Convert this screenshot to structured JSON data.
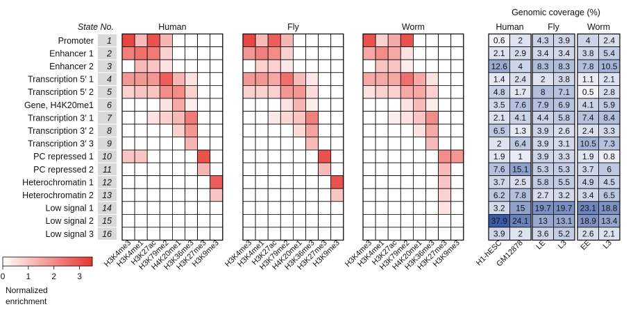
{
  "chart_data": {
    "type": "heatmap",
    "state_header": "State No.",
    "states": [
      {
        "no": "1",
        "name": "Promoter"
      },
      {
        "no": "2",
        "name": "Enhancer 1"
      },
      {
        "no": "3",
        "name": "Enhancer 2"
      },
      {
        "no": "4",
        "name": "Transcription 5′ 1"
      },
      {
        "no": "5",
        "name": "Transcription 5′ 2"
      },
      {
        "no": "6",
        "name": "Gene, H4K20me1"
      },
      {
        "no": "7",
        "name": "Transcription 3′ 1"
      },
      {
        "no": "8",
        "name": "Transcription 3′ 2"
      },
      {
        "no": "9",
        "name": "Transcription 3′ 3"
      },
      {
        "no": "10",
        "name": "PC repressed 1"
      },
      {
        "no": "11",
        "name": "PC repressed 2"
      },
      {
        "no": "12",
        "name": "Heterochromatin 1"
      },
      {
        "no": "13",
        "name": "Heterochromatin 2"
      },
      {
        "no": "14",
        "name": "Low signal 1"
      },
      {
        "no": "15",
        "name": "Low signal 2"
      },
      {
        "no": "16",
        "name": "Low signal 3"
      }
    ],
    "marks": [
      "H3K4me3",
      "H3K4me1",
      "H3K27ac",
      "H3K79me2",
      "H4K20me1",
      "H3K36me3",
      "H3K27me3",
      "H3K9me3"
    ],
    "species": [
      {
        "name": "Human",
        "enrichment": [
          [
            3.2,
            1.2,
            3.0,
            1.3,
            0.0,
            0.0,
            0.0,
            0.0
          ],
          [
            2.2,
            2.5,
            2.3,
            0.8,
            0.0,
            0.0,
            0.0,
            0.0
          ],
          [
            0.0,
            1.2,
            1.0,
            0.5,
            0.0,
            0.0,
            0.0,
            0.0
          ],
          [
            1.8,
            1.8,
            1.8,
            2.8,
            1.3,
            0.5,
            0.0,
            0.0
          ],
          [
            0.8,
            1.0,
            1.0,
            2.0,
            2.0,
            0.8,
            0.0,
            0.0
          ],
          [
            0.0,
            0.0,
            0.0,
            0.5,
            1.5,
            0.3,
            0.0,
            0.0
          ],
          [
            0.0,
            0.0,
            0.5,
            0.8,
            1.2,
            2.3,
            0.0,
            0.0
          ],
          [
            0.0,
            0.0,
            0.0,
            0.0,
            0.8,
            1.8,
            0.0,
            0.0
          ],
          [
            0.0,
            0.0,
            0.0,
            0.0,
            0.0,
            1.3,
            0.0,
            0.0
          ],
          [
            1.0,
            1.0,
            0.0,
            0.0,
            0.0,
            0.0,
            3.0,
            0.0
          ],
          [
            0.0,
            0.0,
            0.0,
            0.0,
            0.0,
            0.0,
            1.3,
            0.0
          ],
          [
            0.0,
            0.0,
            0.0,
            0.0,
            0.0,
            0.0,
            0.0,
            2.8
          ],
          [
            0.0,
            0.0,
            0.0,
            0.0,
            0.0,
            0.0,
            0.0,
            1.0
          ],
          [
            0.0,
            0.0,
            0.0,
            0.0,
            0.0,
            0.0,
            0.0,
            0.0
          ],
          [
            0.0,
            0.0,
            0.0,
            0.0,
            0.0,
            0.0,
            0.0,
            0.0
          ],
          [
            0.0,
            0.0,
            0.0,
            0.0,
            0.0,
            0.0,
            0.0,
            0.0
          ]
        ]
      },
      {
        "name": "Fly",
        "enrichment": [
          [
            3.2,
            1.2,
            2.8,
            1.3,
            0.0,
            0.0,
            0.0,
            0.0
          ],
          [
            1.8,
            2.2,
            2.0,
            0.8,
            0.0,
            0.0,
            0.0,
            0.0
          ],
          [
            0.0,
            0.8,
            0.8,
            0.4,
            0.0,
            0.0,
            0.0,
            0.0
          ],
          [
            1.8,
            1.8,
            1.5,
            2.5,
            1.2,
            0.4,
            0.0,
            0.0
          ],
          [
            0.8,
            0.8,
            0.8,
            1.8,
            1.8,
            0.6,
            0.0,
            0.0
          ],
          [
            0.0,
            0.0,
            0.0,
            0.5,
            1.3,
            0.3,
            0.0,
            0.0
          ],
          [
            0.0,
            0.0,
            0.4,
            0.7,
            1.0,
            2.2,
            0.0,
            0.0
          ],
          [
            0.0,
            0.0,
            0.0,
            0.0,
            0.6,
            1.6,
            0.0,
            0.0
          ],
          [
            0.0,
            0.0,
            0.0,
            0.0,
            0.0,
            1.2,
            0.0,
            0.0
          ],
          [
            0.0,
            0.0,
            0.0,
            0.0,
            0.0,
            0.0,
            3.0,
            0.0
          ],
          [
            0.0,
            0.0,
            0.0,
            0.0,
            0.0,
            0.0,
            1.2,
            0.0
          ],
          [
            0.0,
            0.0,
            0.0,
            0.0,
            0.0,
            0.0,
            0.0,
            3.0
          ],
          [
            0.0,
            0.0,
            0.0,
            0.0,
            0.0,
            0.0,
            0.0,
            1.0
          ],
          [
            0.0,
            0.0,
            0.0,
            0.0,
            0.0,
            0.0,
            0.0,
            0.0
          ],
          [
            0.0,
            0.0,
            0.0,
            0.0,
            0.0,
            0.0,
            0.0,
            0.0
          ],
          [
            0.0,
            0.0,
            0.0,
            0.0,
            0.0,
            0.0,
            0.0,
            0.0
          ]
        ]
      },
      {
        "name": "Worm",
        "enrichment": [
          [
            3.0,
            0.8,
            1.5,
            3.0,
            0.0,
            0.0,
            0.0,
            0.0
          ],
          [
            1.5,
            2.0,
            1.5,
            0.5,
            0.0,
            0.0,
            0.0,
            0.0
          ],
          [
            0.0,
            1.0,
            1.0,
            0.3,
            0.0,
            0.0,
            0.0,
            0.0
          ],
          [
            1.5,
            1.5,
            1.5,
            2.5,
            1.5,
            0.5,
            0.0,
            0.0
          ],
          [
            0.5,
            0.8,
            0.8,
            1.5,
            1.5,
            0.8,
            0.0,
            0.0
          ],
          [
            0.0,
            0.0,
            0.0,
            0.5,
            1.2,
            0.3,
            0.0,
            0.0
          ],
          [
            0.0,
            0.0,
            0.3,
            0.5,
            1.0,
            2.0,
            0.0,
            0.0
          ],
          [
            0.0,
            0.0,
            0.0,
            0.0,
            0.5,
            1.5,
            0.0,
            0.0
          ],
          [
            0.0,
            0.0,
            0.0,
            0.0,
            0.0,
            1.2,
            0.0,
            0.0
          ],
          [
            0.0,
            0.0,
            0.0,
            0.0,
            0.0,
            0.0,
            2.0,
            1.8
          ],
          [
            0.0,
            0.0,
            0.0,
            0.0,
            0.0,
            0.0,
            1.2,
            0.0
          ],
          [
            0.0,
            0.0,
            0.0,
            0.0,
            0.0,
            0.0,
            1.0,
            0.0
          ],
          [
            0.0,
            0.0,
            0.0,
            0.0,
            0.0,
            0.0,
            0.8,
            0.0
          ],
          [
            0.0,
            0.0,
            0.0,
            0.0,
            0.0,
            0.0,
            0.5,
            0.0
          ],
          [
            0.0,
            0.0,
            0.0,
            0.0,
            0.0,
            0.0,
            0.0,
            0.0
          ],
          [
            0.0,
            0.0,
            0.0,
            0.0,
            0.0,
            0.0,
            0.0,
            0.0
          ]
        ]
      }
    ],
    "coverage": {
      "title": "Genomic coverage (%)",
      "groups": [
        {
          "name": "Human",
          "columns": [
            "H1-hESC",
            "GM12878"
          ]
        },
        {
          "name": "Fly",
          "columns": [
            "LE",
            "L3"
          ]
        },
        {
          "name": "Worm",
          "columns": [
            "EE",
            "L3"
          ]
        }
      ],
      "values": [
        [
          "0.6",
          "2",
          "4.3",
          "3.9",
          "4",
          "2.4"
        ],
        [
          "2.1",
          "2.9",
          "3.4",
          "3.4",
          "3.8",
          "5.4"
        ],
        [
          "12.6",
          "4",
          "8.3",
          "8.3",
          "7.8",
          "10.5"
        ],
        [
          "1.4",
          "2.4",
          "2",
          "3.8",
          "1.1",
          "2.1"
        ],
        [
          "4.8",
          "1.7",
          "8",
          "7.1",
          "0.5",
          "2.8"
        ],
        [
          "3.5",
          "7.6",
          "7.9",
          "6.9",
          "4.1",
          "5.9"
        ],
        [
          "2.1",
          "4.1",
          "4.4",
          "5.8",
          "7.4",
          "8.4"
        ],
        [
          "6.5",
          "1.3",
          "3.9",
          "2.6",
          "2.4",
          "3.3"
        ],
        [
          "2",
          "6.4",
          "3.9",
          "3.1",
          "10.5",
          "7.3"
        ],
        [
          "1.9",
          "1",
          "3.9",
          "3.3",
          "1.9",
          "0.8"
        ],
        [
          "7.6",
          "15.1",
          "5.3",
          "5.3",
          "3.7",
          "6"
        ],
        [
          "3.7",
          "2.5",
          "5.8",
          "5.5",
          "4.9",
          "4.5"
        ],
        [
          "6.2",
          "7.8",
          "2.7",
          "3.2",
          "3.4",
          "6.5"
        ],
        [
          "3.2",
          "15",
          "19.7",
          "19.7",
          "23.1",
          "18.8"
        ],
        [
          "37.9",
          "24.1",
          "13",
          "13.1",
          "18.9",
          "13.4"
        ],
        [
          "3.9",
          "2",
          "3.6",
          "5.2",
          "2.6",
          "2.1"
        ]
      ]
    },
    "legend": {
      "title_line1": "Normalized",
      "title_line2": "enrichment",
      "min": 0,
      "max": 3.5,
      "ticks": [
        "0",
        "1",
        "2",
        "3"
      ],
      "color_low": "#ffffff",
      "color_high": "#e8352f"
    },
    "colors": {
      "enrichment_high": "#e8352f",
      "coverage_high": "#3b5ba5",
      "state_label_bg": "#d9d9d9",
      "grid": "#000000"
    }
  }
}
